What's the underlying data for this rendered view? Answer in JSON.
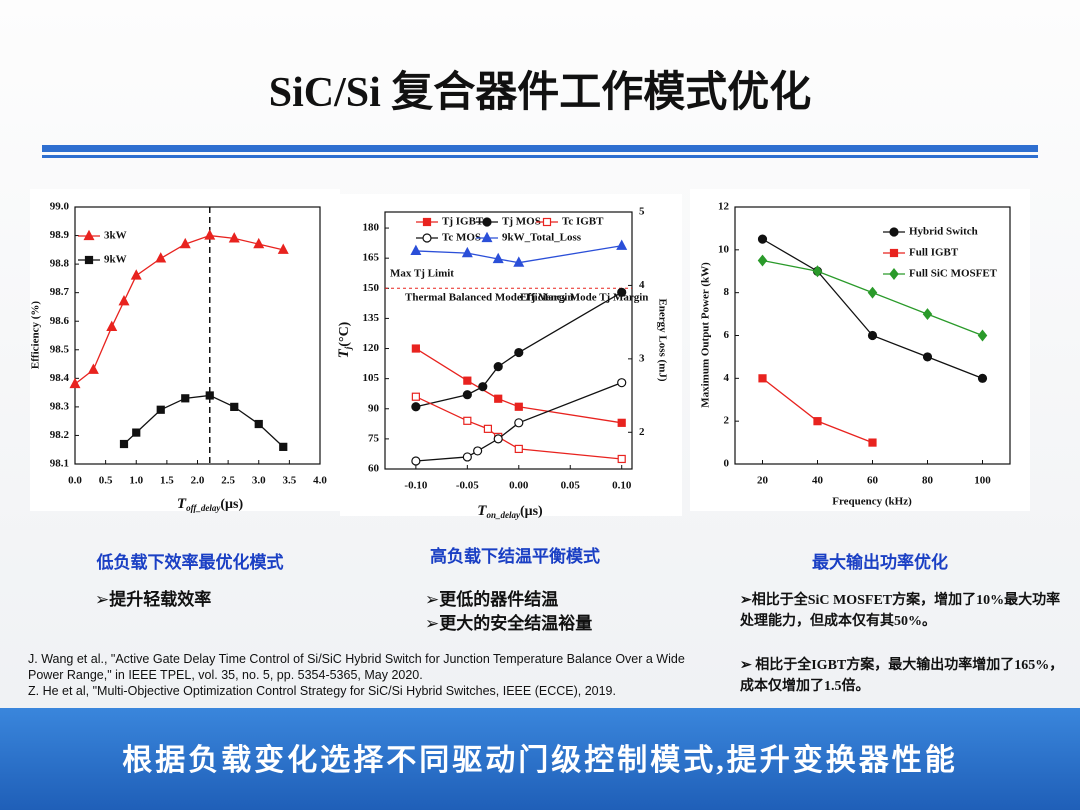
{
  "title": "SiC/Si 复合器件工作模式优化",
  "chart_data": [
    {
      "type": "line",
      "xlabel": {
        "text": "T",
        "sub": "off_delay",
        "unit": "(μs)"
      },
      "ylabel": "Efficiency (%)",
      "xlim": [
        0,
        4
      ],
      "ylim": [
        98.1,
        99.0
      ],
      "xticks": [
        {
          "value": 0,
          "label": "0.0"
        },
        0.5,
        {
          "value": 1,
          "label": "1.0"
        },
        1.5,
        {
          "value": 2,
          "label": "2.0"
        },
        2.5,
        {
          "value": 3,
          "label": "3.0"
        },
        3.5,
        {
          "value": 4,
          "label": "4.0"
        }
      ],
      "yticks": [
        98.1,
        98.2,
        98.3,
        98.4,
        98.5,
        98.6,
        98.7,
        98.8,
        98.9,
        {
          "value": 99,
          "label": "99.0"
        }
      ],
      "grid": false,
      "legend": "top-left",
      "vline": 2.2,
      "series": [
        {
          "name": "3kW",
          "color": "#e8231f",
          "marker": "triangle",
          "filled": true,
          "x": [
            0,
            0.3,
            0.6,
            0.8,
            1.0,
            1.4,
            1.8,
            2.2,
            2.6,
            3.0,
            3.4
          ],
          "values": [
            98.38,
            98.43,
            98.58,
            98.67,
            98.76,
            98.82,
            98.87,
            98.9,
            98.89,
            98.87,
            98.85
          ]
        },
        {
          "name": "9kW",
          "color": "#111111",
          "marker": "square",
          "filled": true,
          "x": [
            0.8,
            1.0,
            1.4,
            1.8,
            2.2,
            2.6,
            3.0,
            3.4
          ],
          "values": [
            98.17,
            98.21,
            98.29,
            98.33,
            98.34,
            98.3,
            98.24,
            98.16
          ]
        }
      ]
    },
    {
      "type": "line",
      "xlabel": {
        "text": "T",
        "sub": "on_delay",
        "unit": "(μs)"
      },
      "ylabel": {
        "text": "T",
        "sub": "j",
        "unit": "(°C)"
      },
      "y2label": "Energy Loss (mJ)",
      "xlim": [
        -0.13,
        0.11
      ],
      "ylim": [
        60,
        188
      ],
      "y2lim": [
        1.5,
        5
      ],
      "xticks": [
        {
          "value": -0.1,
          "label": "-0.10"
        },
        {
          "value": -0.05,
          "label": "-0.05"
        },
        {
          "value": 0,
          "label": "0.00"
        },
        0.05,
        {
          "value": 0.1,
          "label": "0.10"
        }
      ],
      "yticks": [
        60,
        75,
        90,
        105,
        120,
        135,
        150,
        165,
        180
      ],
      "y2ticks": [
        2,
        3,
        4,
        5
      ],
      "grid": false,
      "legend": "top",
      "hline": 150,
      "annotations": [
        "Max Tj Limit",
        "Thermal Balanced Mode Tj Margin",
        "Efficiency Mode Tj Margin"
      ],
      "series": [
        {
          "name": "Tj IGBT",
          "color": "#e8231f",
          "marker": "square",
          "filled": true,
          "x": [
            -0.1,
            -0.05,
            -0.02,
            0,
            0.1
          ],
          "values": [
            120,
            104,
            95,
            91,
            83
          ]
        },
        {
          "name": "Tj MOS",
          "color": "#111111",
          "marker": "circle",
          "filled": true,
          "x": [
            -0.1,
            -0.05,
            -0.035,
            -0.02,
            0,
            0.1
          ],
          "values": [
            91,
            97,
            101,
            111,
            118,
            148
          ]
        },
        {
          "name": "Tc IGBT",
          "color": "#e8231f",
          "marker": "square",
          "filled": false,
          "x": [
            -0.1,
            -0.05,
            -0.03,
            -0.02,
            0,
            0.1
          ],
          "values": [
            96,
            84,
            80,
            76,
            70,
            65
          ]
        },
        {
          "name": "Tc MOS",
          "color": "#111111",
          "marker": "circle",
          "filled": false,
          "x": [
            -0.1,
            -0.05,
            -0.04,
            -0.02,
            0,
            0.1
          ],
          "values": [
            64,
            66,
            69,
            75,
            83,
            103
          ]
        },
        {
          "name": "9kW_Total_Loss",
          "color": "#2b4fd8",
          "marker": "triangle",
          "filled": true,
          "axis": "y2",
          "x": [
            -0.1,
            -0.05,
            -0.02,
            0,
            0.1
          ],
          "values": [
            4.47,
            4.44,
            4.36,
            4.31,
            4.54
          ]
        }
      ]
    },
    {
      "type": "line",
      "xlabel": "Frequency (kHz)",
      "ylabel": "Maximum Output Power (kW)",
      "xlim": [
        10,
        110
      ],
      "ylim": [
        0,
        12
      ],
      "xticks": [
        20,
        40,
        60,
        80,
        100
      ],
      "yticks": [
        0,
        2,
        4,
        6,
        8,
        10,
        12
      ],
      "grid": false,
      "legend": "top-right",
      "series": [
        {
          "name": "Hybrid Switch",
          "color": "#111111",
          "marker": "circle",
          "filled": true,
          "x": [
            20,
            40,
            60,
            80,
            100
          ],
          "values": [
            10.5,
            9,
            6,
            5,
            4
          ]
        },
        {
          "name": "Full IGBT",
          "color": "#e8231f",
          "marker": "square",
          "filled": true,
          "x": [
            20,
            40,
            60
          ],
          "values": [
            4,
            2,
            1
          ]
        },
        {
          "name": "Full SiC MOSFET",
          "color": "#2a9a2a",
          "marker": "diamond",
          "filled": true,
          "x": [
            20,
            40,
            60,
            80,
            100
          ],
          "values": [
            9.5,
            9,
            8,
            7,
            6
          ]
        }
      ]
    }
  ],
  "captions": [
    "低负载下效率最优化模式",
    "高负载下结温平衡模式",
    "最大输出功率优化"
  ],
  "bullets_left": [
    "➢提升轻载效率"
  ],
  "bullets_mid": [
    "➢更低的器件结温",
    "➢更大的安全结温裕量"
  ],
  "bullets_right": [
    "➢相比于全SiC MOSFET方案，增加了10%最大功率处理能力，但成本仅有其50%。",
    "➢ 相比于全IGBT方案，最大输出功率增加了165%，成本仅增加了1.5倍。"
  ],
  "references": [
    "J. Wang et al., \"Active Gate Delay Time Control of Si/SiC Hybrid Switch for Junction Temperature Balance Over a Wide Power Range,\" in IEEE TPEL, vol. 35, no. 5, pp. 5354-5365, May 2020.",
    "Z. He et al,  \"Multi-Objective Optimization Control Strategy for SiC/Si Hybrid Switches, IEEE (ECCE), 2019."
  ],
  "footer": "根据负载变化选择不同驱动门级控制模式,提升变换器性能"
}
